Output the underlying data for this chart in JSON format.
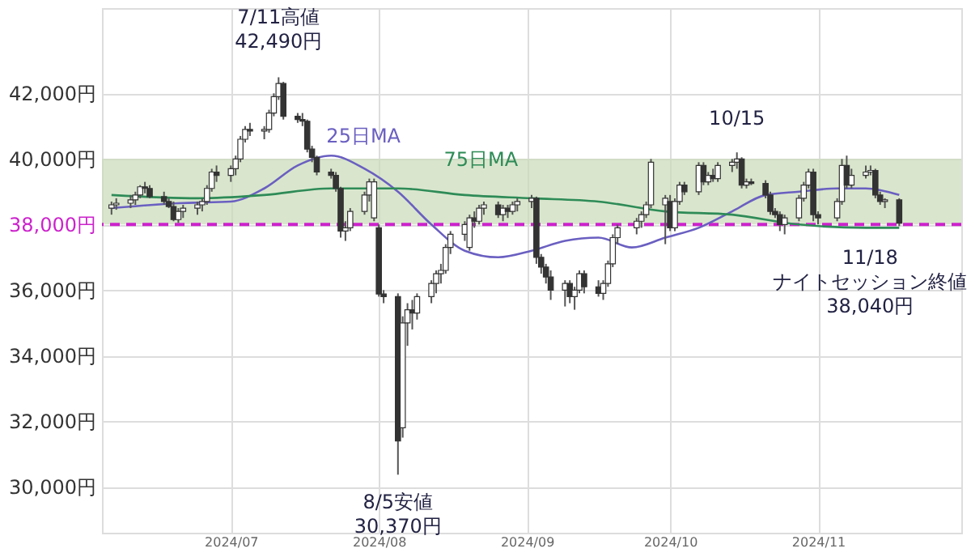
{
  "chart_data": {
    "type": "candlestick",
    "x": [
      "2024-06-06",
      "2024-06-07",
      "2024-06-10",
      "2024-06-11",
      "2024-06-12",
      "2024-06-13",
      "2024-06-14",
      "2024-06-17",
      "2024-06-18",
      "2024-06-19",
      "2024-06-20",
      "2024-06-21",
      "2024-06-24",
      "2024-06-25",
      "2024-06-26",
      "2024-06-27",
      "2024-06-28",
      "2024-07-01",
      "2024-07-02",
      "2024-07-03",
      "2024-07-04",
      "2024-07-05",
      "2024-07-08",
      "2024-07-09",
      "2024-07-10",
      "2024-07-11",
      "2024-07-12",
      "2024-07-15",
      "2024-07-16",
      "2024-07-17",
      "2024-07-18",
      "2024-07-19",
      "2024-07-22",
      "2024-07-23",
      "2024-07-24",
      "2024-07-25",
      "2024-07-26",
      "2024-07-29",
      "2024-07-30",
      "2024-07-31",
      "2024-08-01",
      "2024-08-02",
      "2024-08-05",
      "2024-08-06",
      "2024-08-07",
      "2024-08-08",
      "2024-08-09",
      "2024-08-12",
      "2024-08-13",
      "2024-08-14",
      "2024-08-15",
      "2024-08-16",
      "2024-08-19",
      "2024-08-20",
      "2024-08-21",
      "2024-08-22",
      "2024-08-23",
      "2024-08-26",
      "2024-08-27",
      "2024-08-28",
      "2024-08-29",
      "2024-08-30",
      "2024-09-02",
      "2024-09-03",
      "2024-09-04",
      "2024-09-05",
      "2024-09-06",
      "2024-09-09",
      "2024-09-10",
      "2024-09-11",
      "2024-09-12",
      "2024-09-13",
      "2024-09-16",
      "2024-09-17",
      "2024-09-18",
      "2024-09-19",
      "2024-09-20",
      "2024-09-24",
      "2024-09-25",
      "2024-09-26",
      "2024-09-27",
      "2024-09-30",
      "2024-10-01",
      "2024-10-02",
      "2024-10-03",
      "2024-10-04",
      "2024-10-07",
      "2024-10-08",
      "2024-10-09",
      "2024-10-10",
      "2024-10-11",
      "2024-10-14",
      "2024-10-15",
      "2024-10-16",
      "2024-10-17",
      "2024-10-18",
      "2024-10-21",
      "2024-10-22",
      "2024-10-23",
      "2024-10-24",
      "2024-10-25",
      "2024-10-28",
      "2024-10-29",
      "2024-10-30",
      "2024-10-31",
      "2024-11-01",
      "2024-11-05",
      "2024-11-06",
      "2024-11-07",
      "2024-11-08",
      "2024-11-11",
      "2024-11-12",
      "2024-11-13",
      "2024-11-14",
      "2024-11-15",
      "2024-11-18"
    ],
    "ohlc": [
      [
        38500,
        38700,
        38300,
        38600
      ],
      [
        38600,
        38800,
        38450,
        38650
      ],
      [
        38650,
        38900,
        38500,
        38750
      ],
      [
        38750,
        39000,
        38600,
        38900
      ],
      [
        38900,
        39200,
        38800,
        39150
      ],
      [
        39150,
        39300,
        38950,
        39100
      ],
      [
        39100,
        39200,
        38800,
        38850
      ],
      [
        38850,
        39000,
        38600,
        38700
      ],
      [
        38700,
        38800,
        38500,
        38550
      ],
      [
        38550,
        38700,
        38100,
        38150
      ],
      [
        38150,
        38500,
        38050,
        38400
      ],
      [
        38400,
        38600,
        38200,
        38500
      ],
      [
        38500,
        38700,
        38300,
        38600
      ],
      [
        38600,
        38800,
        38400,
        38700
      ],
      [
        38700,
        39200,
        38600,
        39100
      ],
      [
        39100,
        39700,
        39000,
        39600
      ],
      [
        39600,
        39800,
        39300,
        39500
      ],
      [
        39500,
        39800,
        39300,
        39700
      ],
      [
        39700,
        40100,
        39500,
        40000
      ],
      [
        40000,
        40700,
        39900,
        40600
      ],
      [
        40600,
        41000,
        40500,
        40900
      ],
      [
        40900,
        41100,
        40700,
        40850
      ],
      [
        40850,
        41000,
        40600,
        40900
      ],
      [
        40900,
        41500,
        40800,
        41400
      ],
      [
        41400,
        42000,
        41300,
        41900
      ],
      [
        41900,
        42490,
        41800,
        42300
      ],
      [
        42300,
        42350,
        41200,
        41300
      ],
      [
        41300,
        41400,
        41100,
        41200
      ],
      [
        41200,
        41400,
        41000,
        41150
      ],
      [
        41150,
        41200,
        40200,
        40300
      ],
      [
        40300,
        40400,
        39900,
        40050
      ],
      [
        40050,
        40100,
        39500,
        39600
      ],
      [
        39600,
        39700,
        39400,
        39500
      ],
      [
        39500,
        39600,
        39000,
        39100
      ],
      [
        39100,
        39150,
        37600,
        37800
      ],
      [
        37800,
        38100,
        37500,
        37900
      ],
      [
        37900,
        38500,
        37800,
        38400
      ],
      [
        38400,
        39000,
        38300,
        38900
      ],
      [
        38900,
        39400,
        38700,
        39300
      ],
      [
        38200,
        39400,
        38100,
        39300
      ],
      [
        37900,
        38000,
        35800,
        35880
      ],
      [
        35880,
        36000,
        35600,
        35800
      ],
      [
        35800,
        35900,
        30370,
        31400
      ],
      [
        31800,
        35200,
        31500,
        35000
      ],
      [
        35000,
        35600,
        34300,
        35400
      ],
      [
        35400,
        35700,
        34800,
        35300
      ],
      [
        35300,
        35900,
        35100,
        35800
      ],
      [
        35800,
        36300,
        35600,
        36200
      ],
      [
        36200,
        36600,
        35900,
        36500
      ],
      [
        36500,
        36800,
        36200,
        36600
      ],
      [
        36600,
        37400,
        36500,
        37300
      ],
      [
        37300,
        37800,
        37100,
        37700
      ],
      [
        37700,
        38100,
        37500,
        38000
      ],
      [
        37300,
        38300,
        37200,
        38200
      ],
      [
        38200,
        38400,
        37900,
        38100
      ],
      [
        38100,
        38600,
        38000,
        38500
      ],
      [
        38500,
        38700,
        38300,
        38600
      ],
      [
        38600,
        38700,
        38200,
        38300
      ],
      [
        38300,
        38600,
        38100,
        38500
      ],
      [
        38500,
        38600,
        38200,
        38400
      ],
      [
        38400,
        38700,
        38300,
        38600
      ],
      [
        38600,
        38800,
        38400,
        38700
      ],
      [
        38700,
        38900,
        38500,
        38800
      ],
      [
        38800,
        38850,
        36800,
        37000
      ],
      [
        37000,
        37100,
        36500,
        36700
      ],
      [
        36700,
        36800,
        36200,
        36400
      ],
      [
        36400,
        36600,
        35700,
        36000
      ],
      [
        36000,
        36300,
        35500,
        36200
      ],
      [
        36200,
        36300,
        35600,
        35800
      ],
      [
        35800,
        36100,
        35400,
        36000
      ],
      [
        36000,
        36600,
        35900,
        36500
      ],
      [
        36500,
        36600,
        35900,
        36100
      ],
      [
        36100,
        36300,
        35800,
        35900
      ],
      [
        35900,
        36300,
        35700,
        36200
      ],
      [
        36200,
        36900,
        36100,
        36800
      ],
      [
        36800,
        37700,
        36700,
        37600
      ],
      [
        37600,
        38000,
        37400,
        37900
      ],
      [
        37900,
        38200,
        37700,
        38100
      ],
      [
        38100,
        38400,
        37900,
        38300
      ],
      [
        38300,
        38700,
        38200,
        38600
      ],
      [
        38600,
        40000,
        38500,
        39900
      ],
      [
        38600,
        38900,
        37400,
        38800
      ],
      [
        38700,
        38900,
        37800,
        37900
      ],
      [
        37900,
        38800,
        37800,
        38700
      ],
      [
        38700,
        39300,
        38600,
        39200
      ],
      [
        39200,
        39300,
        38900,
        39000
      ],
      [
        39000,
        39900,
        38900,
        39800
      ],
      [
        39800,
        39900,
        39200,
        39300
      ],
      [
        39300,
        39600,
        39200,
        39500
      ],
      [
        39500,
        39700,
        39300,
        39400
      ],
      [
        39400,
        39900,
        39300,
        39800
      ],
      [
        39800,
        40000,
        39600,
        39900
      ],
      [
        39900,
        40200,
        39700,
        40000
      ],
      [
        40000,
        40050,
        39100,
        39200
      ],
      [
        39200,
        39400,
        39100,
        39300
      ],
      [
        39300,
        39400,
        39200,
        39250
      ],
      [
        39250,
        39350,
        38800,
        38900
      ],
      [
        38900,
        39000,
        38300,
        38400
      ],
      [
        38400,
        38500,
        38200,
        38300
      ],
      [
        38300,
        38400,
        37800,
        38000
      ],
      [
        38000,
        38300,
        37700,
        38200
      ],
      [
        38200,
        38900,
        38100,
        38800
      ],
      [
        38800,
        39300,
        38700,
        39200
      ],
      [
        39200,
        39700,
        39100,
        39600
      ],
      [
        39600,
        39700,
        38100,
        38300
      ],
      [
        38300,
        38400,
        38000,
        38200
      ],
      [
        38200,
        38800,
        38100,
        38700
      ],
      [
        38700,
        40000,
        38600,
        39800
      ],
      [
        39800,
        40100,
        39100,
        39200
      ],
      [
        39200,
        39700,
        39100,
        39500
      ],
      [
        39500,
        39800,
        39400,
        39600
      ],
      [
        39600,
        39800,
        39500,
        39650
      ],
      [
        39650,
        39700,
        38800,
        38900
      ],
      [
        38900,
        39000,
        38600,
        38700
      ],
      [
        38700,
        38800,
        38500,
        38750
      ],
      [
        38750,
        38800,
        37950,
        38040
      ]
    ],
    "series": [
      {
        "name": "25日MA",
        "type": "line",
        "color": "#6a5fc1",
        "x": [
          "2024-06-06",
          "2024-06-20",
          "2024-07-01",
          "2024-07-08",
          "2024-07-15",
          "2024-07-22",
          "2024-07-29",
          "2024-08-05",
          "2024-08-12",
          "2024-08-19",
          "2024-08-26",
          "2024-09-02",
          "2024-09-09",
          "2024-09-16",
          "2024-09-23",
          "2024-09-30",
          "2024-10-07",
          "2024-10-14",
          "2024-10-21",
          "2024-10-28",
          "2024-11-05",
          "2024-11-11",
          "2024-11-18"
        ],
        "values": [
          38500,
          38650,
          38700,
          39100,
          39800,
          40100,
          39700,
          39000,
          38000,
          37200,
          37000,
          37200,
          37500,
          37600,
          37300,
          37600,
          37900,
          38400,
          38900,
          39000,
          39100,
          39100,
          38900
        ]
      },
      {
        "name": "75日MA",
        "type": "line",
        "color": "#2e8b57",
        "x": [
          "2024-06-06",
          "2024-06-24",
          "2024-07-08",
          "2024-07-22",
          "2024-08-05",
          "2024-08-19",
          "2024-09-02",
          "2024-09-16",
          "2024-09-30",
          "2024-10-14",
          "2024-10-28",
          "2024-11-11",
          "2024-11-18"
        ],
        "values": [
          38900,
          38800,
          38900,
          39100,
          39100,
          38900,
          38800,
          38700,
          38400,
          38300,
          38000,
          37900,
          37900
        ]
      }
    ],
    "xlim": [
      "2024-06-04",
      "2024-12-01"
    ],
    "xticks": [
      {
        "value": "2024-07-01",
        "label": "2024/07"
      },
      {
        "value": "2024-08-01",
        "label": "2024/08"
      },
      {
        "value": "2024-09-01",
        "label": "2024/09"
      },
      {
        "value": "2024-10-01",
        "label": "2024/10"
      },
      {
        "value": "2024-11-01",
        "label": "2024/11"
      }
    ],
    "ylim": [
      28600,
      44600
    ],
    "yticks": [
      {
        "value": 30000,
        "label": "30,000円"
      },
      {
        "value": 32000,
        "label": "32,000円"
      },
      {
        "value": 34000,
        "label": "34,000円"
      },
      {
        "value": 36000,
        "label": "36,000円"
      },
      {
        "value": 38000,
        "label": "38,000円"
      },
      {
        "value": 40000,
        "label": "40,000円"
      },
      {
        "value": 42000,
        "label": "42,000円"
      }
    ],
    "grid": true,
    "legend": false,
    "ref_lines": [
      {
        "axis": "y",
        "value": 38000,
        "color": "#cc22cc",
        "line_style": "dashed"
      }
    ],
    "bands": [
      {
        "axis": "y",
        "from": 38000,
        "to": 40000,
        "color": "#c9dcb8"
      }
    ],
    "annotations": [
      {
        "text": "7/11高値\n42,490円",
        "x": "2024-07-11",
        "y": 42490
      },
      {
        "text": "8/5安値\n30,370円",
        "x": "2024-08-05",
        "y": 30370
      },
      {
        "text": "10/15",
        "x": "2024-10-15",
        "y": 40200
      },
      {
        "text": "11/18\nナイトセッション終値\n38,040円",
        "x": "2024-11-18",
        "y": 38040
      }
    ]
  }
}
